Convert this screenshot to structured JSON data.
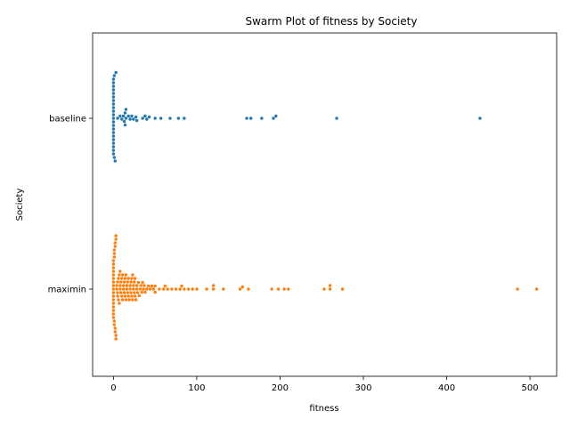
{
  "chart_data": {
    "type": "scatter",
    "subtype": "swarm",
    "title": "Swarm Plot of fitness by Society",
    "xlabel": "fitness",
    "ylabel": "Society",
    "xlim": [
      -25,
      532
    ],
    "xticks": [
      0,
      100,
      200,
      300,
      400,
      500
    ],
    "xtick_labels": [
      "0",
      "100",
      "200",
      "300",
      "400",
      "500"
    ],
    "categories": [
      "baseline",
      "maximin"
    ],
    "grid": false,
    "legend": "none",
    "series": [
      {
        "category": "baseline",
        "color": "#1f77b4",
        "values": [
          0,
          0,
          0,
          0,
          0,
          0,
          0,
          0,
          0,
          0,
          0,
          0,
          0,
          0,
          0,
          0,
          0,
          0,
          0,
          0,
          0,
          0,
          1,
          1,
          2,
          3,
          5,
          8,
          10,
          12,
          13,
          14,
          14,
          15,
          15,
          18,
          20,
          22,
          24,
          27,
          28,
          35,
          38,
          40,
          43,
          50,
          57,
          68,
          78,
          85,
          160,
          165,
          178,
          192,
          195,
          268,
          440
        ]
      },
      {
        "category": "maximin",
        "color": "#ff7f0e",
        "values": [
          0,
          0,
          0,
          0,
          0,
          0,
          0,
          0,
          0,
          0,
          0,
          0,
          0,
          0,
          0,
          0,
          0,
          1,
          1,
          1,
          1,
          1,
          2,
          2,
          2,
          2,
          3,
          3,
          3,
          3,
          4,
          4,
          5,
          5,
          5,
          6,
          6,
          7,
          7,
          8,
          8,
          8,
          9,
          9,
          10,
          10,
          11,
          11,
          12,
          12,
          13,
          13,
          14,
          14,
          15,
          15,
          16,
          16,
          17,
          17,
          18,
          18,
          19,
          20,
          20,
          21,
          21,
          22,
          22,
          23,
          23,
          24,
          24,
          25,
          25,
          26,
          26,
          27,
          28,
          28,
          29,
          30,
          31,
          32,
          33,
          34,
          35,
          36,
          37,
          38,
          40,
          42,
          44,
          46,
          48,
          50,
          50,
          55,
          60,
          62,
          65,
          70,
          75,
          80,
          82,
          85,
          90,
          95,
          100,
          112,
          120,
          120,
          132,
          152,
          155,
          162,
          190,
          198,
          205,
          210,
          253,
          260,
          260,
          275,
          485,
          508
        ]
      }
    ]
  }
}
